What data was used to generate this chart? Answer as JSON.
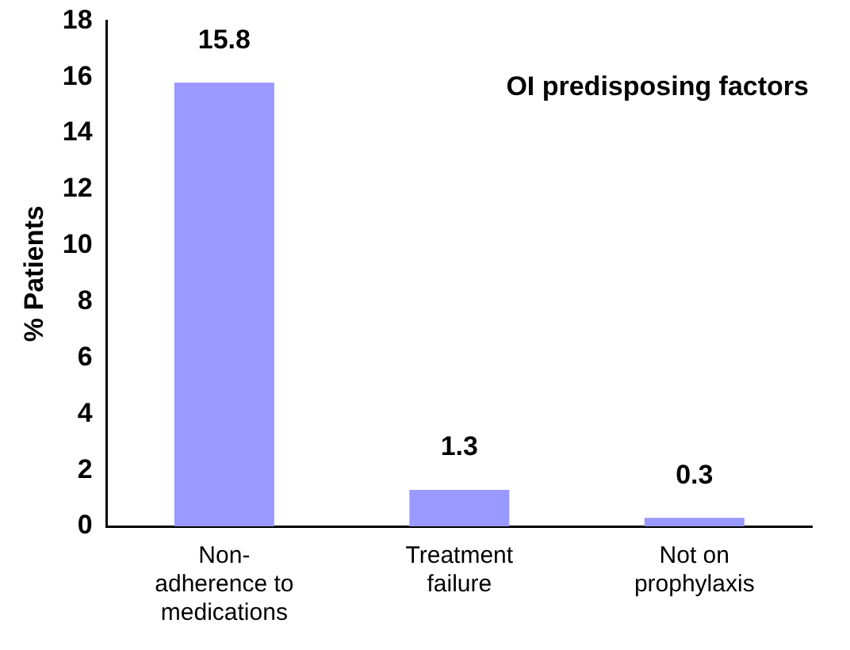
{
  "chart_data": {
    "type": "bar",
    "title": "OI predisposing factors",
    "ylabel": "% Patients",
    "categories": [
      "Non-adherence to medications",
      "Treatment failure",
      "Not on prophylaxis"
    ],
    "values": [
      15.8,
      1.3,
      0.3
    ],
    "color": "#9999ff",
    "ylim": [
      0,
      18
    ],
    "yticks": [
      0,
      2,
      4,
      6,
      8,
      10,
      12,
      14,
      16,
      18
    ],
    "grid": false,
    "data_labels": true
  }
}
